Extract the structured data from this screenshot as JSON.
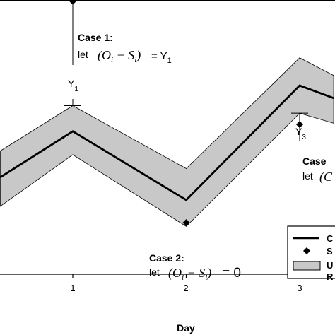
{
  "chart_data": {
    "type": "line",
    "xlabel": "Day",
    "x_ticks": [
      "1",
      "2",
      "3"
    ],
    "series": [
      {
        "x": [
          0.36,
          1.0,
          2.0,
          3.0,
          3.3
        ],
        "values": [
          0.385,
          0.568,
          0.295,
          0.75,
          0.7
        ]
      }
    ],
    "uncertainty_band": {
      "x": [
        0.36,
        1.0,
        2.0,
        3.0,
        3.3
      ],
      "lower": [
        0.27,
        0.475,
        0.19,
        0.64,
        0.6
      ],
      "upper": [
        0.49,
        0.67,
        0.42,
        0.86,
        0.79
      ]
    },
    "markers": [
      {
        "x": 1.0,
        "y": 1.085
      },
      {
        "x": 2.0,
        "y": 0.205
      },
      {
        "x": 3.0,
        "y": 0.595
      }
    ]
  },
  "annotations": {
    "case1_title": "Case 1:",
    "case1_let": "let",
    "case1_expr": "(O",
    "case1_sub_i": "i",
    "case1_minus_s": " − S",
    "case1_sub_i2": "i",
    "case1_close": ")",
    "case1_equals_y": "= Y",
    "case1_sub_1": "1",
    "y1_label": "Y",
    "y1_sub": "1",
    "case2_title": "Case 2:",
    "case2_let": "let",
    "case2_expr": "(O",
    "case2_sub_i": "i",
    "case2_minus_s": " − S",
    "case2_sub_i2": "i",
    "case2_close": ")",
    "case2_equals": "= 0",
    "y3_label": "Y",
    "y3_sub": "3",
    "case3_title": "Case",
    "case3_let": "let",
    "case3_expr": "(C"
  },
  "legend": {
    "item1": "C",
    "item2": "S",
    "item3a": "U",
    "item3b": "R"
  }
}
